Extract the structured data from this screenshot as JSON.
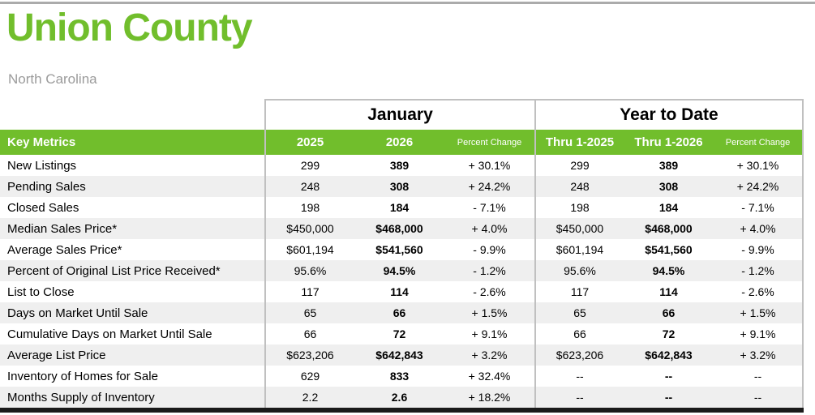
{
  "header": {
    "title": "Union County",
    "subtitle": "North Carolina"
  },
  "table": {
    "key_metrics_label": "Key Metrics",
    "sections": [
      {
        "label": "January",
        "columns": [
          "2025",
          "2026",
          "Percent Change"
        ]
      },
      {
        "label": "Year to Date",
        "columns": [
          "Thru 1-2025",
          "Thru 1-2026",
          "Percent Change"
        ]
      }
    ],
    "rows": [
      {
        "metric": "New Listings",
        "values": [
          "299",
          "389",
          "+ 30.1%",
          "299",
          "389",
          "+ 30.1%"
        ]
      },
      {
        "metric": "Pending Sales",
        "values": [
          "248",
          "308",
          "+ 24.2%",
          "248",
          "308",
          "+ 24.2%"
        ]
      },
      {
        "metric": "Closed Sales",
        "values": [
          "198",
          "184",
          "- 7.1%",
          "198",
          "184",
          "- 7.1%"
        ]
      },
      {
        "metric": "Median Sales Price*",
        "values": [
          "$450,000",
          "$468,000",
          "+ 4.0%",
          "$450,000",
          "$468,000",
          "+ 4.0%"
        ]
      },
      {
        "metric": "Average Sales Price*",
        "values": [
          "$601,194",
          "$541,560",
          "- 9.9%",
          "$601,194",
          "$541,560",
          "- 9.9%"
        ]
      },
      {
        "metric": "Percent of Original List Price Received*",
        "values": [
          "95.6%",
          "94.5%",
          "- 1.2%",
          "95.6%",
          "94.5%",
          "- 1.2%"
        ]
      },
      {
        "metric": "List to Close",
        "values": [
          "117",
          "114",
          "- 2.6%",
          "117",
          "114",
          "- 2.6%"
        ]
      },
      {
        "metric": "Days on Market Until Sale",
        "values": [
          "65",
          "66",
          "+ 1.5%",
          "65",
          "66",
          "+ 1.5%"
        ]
      },
      {
        "metric": "Cumulative Days on Market Until Sale",
        "values": [
          "66",
          "72",
          "+ 9.1%",
          "66",
          "72",
          "+ 9.1%"
        ]
      },
      {
        "metric": "Average List Price",
        "values": [
          "$623,206",
          "$642,843",
          "+ 3.2%",
          "$623,206",
          "$642,843",
          "+ 3.2%"
        ]
      },
      {
        "metric": "Inventory of Homes for Sale",
        "values": [
          "629",
          "833",
          "+ 32.4%",
          "--",
          "--",
          "--"
        ]
      },
      {
        "metric": "Months Supply of Inventory",
        "values": [
          "2.2",
          "2.6",
          "+ 18.2%",
          "--",
          "--",
          "--"
        ]
      }
    ]
  },
  "colors": {
    "accent_green": "#71be2c",
    "stripe_gray": "#efefef",
    "border_gray": "#c0c0c0",
    "subtitle_gray": "#9b9b9b",
    "top_rule_gray": "#ababab",
    "bottom_bar_dark": "#1a1a1a"
  }
}
